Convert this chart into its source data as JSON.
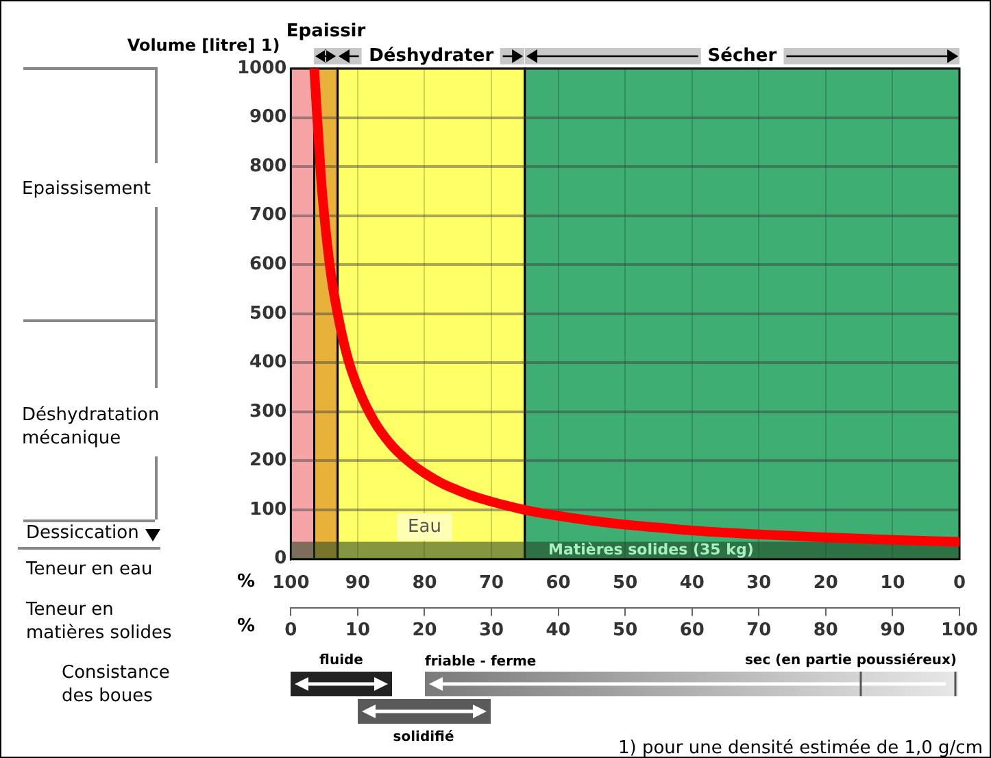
{
  "chart_data": {
    "type": "line",
    "xlabel": "Teneur en eau",
    "x2label": "Teneur en matières solides",
    "ylabel": "Volume [litre] 1)",
    "x": [
      96.5,
      95.5,
      95,
      94,
      93,
      91.5,
      90,
      87.5,
      85,
      82.5,
      80,
      77.5,
      75,
      72.5,
      70,
      67.5,
      65,
      60,
      55,
      50,
      45,
      40,
      30,
      20,
      10,
      0
    ],
    "series": [
      {
        "color": "#ff0000",
        "values": [
          1000,
          780,
          700,
          580,
          500,
          410,
          350,
          280,
          233,
          200,
          175,
          155,
          140,
          127,
          117,
          108,
          100,
          88,
          78,
          70,
          64,
          58,
          50,
          44,
          39,
          35
        ]
      }
    ],
    "xlim": [
      100,
      0
    ],
    "xticks": [
      100,
      90,
      80,
      70,
      60,
      50,
      40,
      30,
      20,
      10,
      0
    ],
    "x2lim": [
      0,
      100
    ],
    "x2ticks": [
      0,
      10,
      20,
      30,
      40,
      50,
      60,
      70,
      80,
      90,
      100
    ],
    "ylim": [
      0,
      1000
    ],
    "yticks": [
      0,
      100,
      200,
      300,
      400,
      500,
      600,
      700,
      800,
      900,
      1000
    ],
    "grid": true,
    "legend": false,
    "marker": "none",
    "line_style": "solid",
    "bands": [
      {
        "axis": "x",
        "from": 100,
        "to": 96.5,
        "color": "#f4a4a4"
      },
      {
        "axis": "x",
        "from": 96.5,
        "to": 93,
        "color": "#e8b23a",
        "label": "Epaissir"
      },
      {
        "axis": "x",
        "from": 93,
        "to": 65,
        "color": "#ffff66",
        "label": "Déshydrater"
      },
      {
        "axis": "x",
        "from": 65,
        "to": 0,
        "color": "#3fae72",
        "label": "Sécher"
      },
      {
        "axis": "y",
        "from": 0,
        "to": 35,
        "color": "#1f3f1f",
        "label": "Matières solides (35 kg)"
      }
    ],
    "annotations": [
      {
        "text": "Eau",
        "x": 80,
        "y": 65
      },
      "Epaissisement",
      "Déshydratation mécanique",
      "Dessiccation",
      "%",
      "%",
      "Consistance des boues",
      "fluide",
      "friable - ferme",
      "sec (en partie poussiéreux)",
      "solidifié",
      "1) pour une densité estimée de 1,0 g/cm"
    ]
  }
}
